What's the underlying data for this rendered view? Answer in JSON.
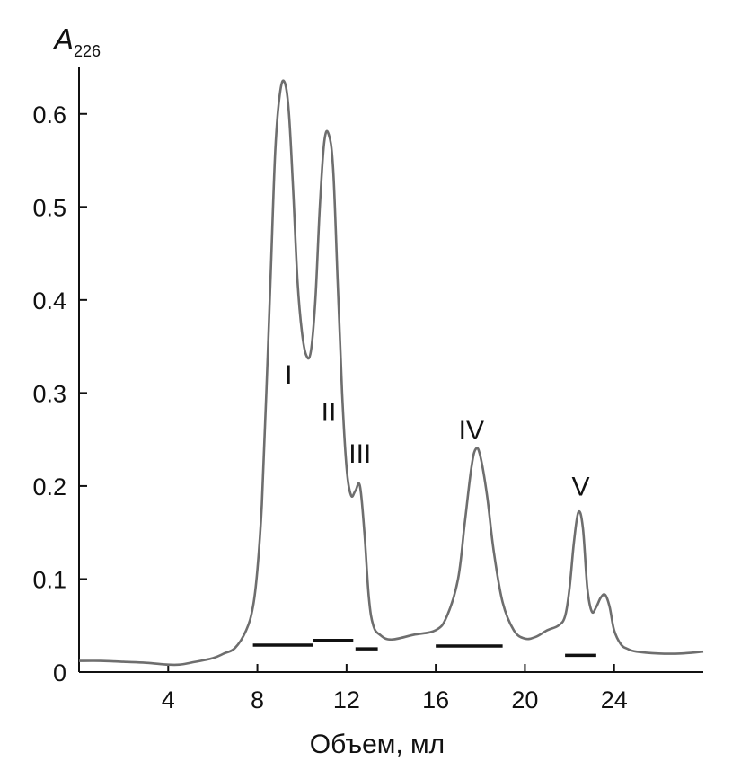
{
  "chart_data": {
    "type": "line",
    "title": "",
    "xlabel": "Объем, мл",
    "ylabel": "A",
    "ylabel_subscript": "226",
    "xlim": [
      0,
      28
    ],
    "ylim": [
      0,
      0.65
    ],
    "xticks": [
      4,
      8,
      12,
      16,
      20,
      24
    ],
    "xtick_labels": [
      "4",
      "8",
      "12",
      "16",
      "20",
      "24"
    ],
    "yticks": [
      0,
      0.1,
      0.2,
      0.3,
      0.4,
      0.5,
      0.6
    ],
    "ytick_labels": [
      "0",
      "0.1",
      "0.2",
      "0.3",
      "0.4",
      "0.5",
      "0.6"
    ],
    "grid": false,
    "legend": "none",
    "series": [
      {
        "color": "#6e6e6e",
        "x": [
          0,
          1,
          2,
          3,
          4,
          4.5,
          5,
          6,
          6.5,
          7,
          7.5,
          7.8,
          8,
          8.2,
          8.4,
          8.6,
          8.8,
          9,
          9.2,
          9.4,
          9.6,
          9.8,
          10,
          10.2,
          10.4,
          10.6,
          10.8,
          11,
          11.2,
          11.4,
          11.6,
          11.8,
          12,
          12.2,
          12.4,
          12.6,
          12.8,
          13,
          13.2,
          13.5,
          14,
          15,
          16,
          16.5,
          17,
          17.3,
          17.6,
          17.8,
          18,
          18.3,
          18.6,
          19,
          19.5,
          20,
          20.5,
          21,
          21.5,
          21.8,
          22,
          22.2,
          22.4,
          22.6,
          22.8,
          23,
          23.2,
          23.4,
          23.6,
          23.8,
          24,
          24.3,
          24.6,
          25,
          26,
          27,
          28
        ],
        "y": [
          0.012,
          0.012,
          0.011,
          0.01,
          0.008,
          0.008,
          0.01,
          0.015,
          0.02,
          0.026,
          0.045,
          0.07,
          0.11,
          0.18,
          0.3,
          0.43,
          0.56,
          0.62,
          0.635,
          0.605,
          0.52,
          0.42,
          0.365,
          0.34,
          0.345,
          0.4,
          0.5,
          0.57,
          0.578,
          0.54,
          0.42,
          0.3,
          0.22,
          0.19,
          0.195,
          0.2,
          0.15,
          0.08,
          0.05,
          0.04,
          0.035,
          0.04,
          0.045,
          0.06,
          0.1,
          0.16,
          0.22,
          0.24,
          0.232,
          0.19,
          0.13,
          0.075,
          0.045,
          0.036,
          0.038,
          0.045,
          0.05,
          0.06,
          0.09,
          0.14,
          0.172,
          0.155,
          0.09,
          0.065,
          0.07,
          0.08,
          0.083,
          0.07,
          0.045,
          0.03,
          0.025,
          0.022,
          0.02,
          0.02,
          0.022
        ]
      }
    ],
    "peak_labels": [
      {
        "text": "I",
        "x": 9.4,
        "y": 0.31
      },
      {
        "text": "II",
        "x": 11.2,
        "y": 0.27
      },
      {
        "text": "III",
        "x": 12.6,
        "y": 0.225
      },
      {
        "text": "IV",
        "x": 17.6,
        "y": 0.25
      },
      {
        "text": "V",
        "x": 22.5,
        "y": 0.19
      }
    ],
    "fraction_bars": [
      {
        "x_start": 7.8,
        "x_end": 10.5,
        "y": 0.029
      },
      {
        "x_start": 10.5,
        "x_end": 12.3,
        "y": 0.034
      },
      {
        "x_start": 12.4,
        "x_end": 13.4,
        "y": 0.025
      },
      {
        "x_start": 16.0,
        "x_end": 19.0,
        "y": 0.028
      },
      {
        "x_start": 21.8,
        "x_end": 23.2,
        "y": 0.018
      }
    ]
  }
}
